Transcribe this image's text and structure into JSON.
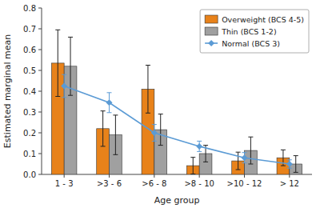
{
  "chart_data": {
    "type": "bar",
    "xlabel": "Age group",
    "ylabel": "Estimated marginal mean",
    "categories": [
      "1 - 3",
      ">3 - 6",
      ">6 - 8",
      ">8 - 10",
      ">10 - 12",
      "> 12"
    ],
    "series": [
      {
        "name": "Overweight (BCS 4-5)",
        "type": "bar",
        "color": "#E8821A",
        "values": [
          0.535,
          0.22,
          0.41,
          0.042,
          0.065,
          0.08
        ],
        "errors": [
          0.16,
          0.085,
          0.115,
          0.04,
          0.042,
          0.038
        ]
      },
      {
        "name": "Thin (BCS 1-2)",
        "type": "bar",
        "color": "#A0A0A0",
        "values": [
          0.52,
          0.19,
          0.215,
          0.1,
          0.115,
          0.05
        ],
        "errors": [
          0.14,
          0.095,
          0.075,
          0.04,
          0.065,
          0.04
        ]
      },
      {
        "name": "Normal (BCS 3)",
        "type": "line",
        "color": "#5B9BD5",
        "marker": "diamond",
        "line_style": "solid",
        "values": [
          0.425,
          0.345,
          0.2,
          0.135,
          0.08,
          0.05
        ],
        "errors": [
          0.055,
          0.048,
          0.04,
          0.025,
          0.025,
          0.02
        ]
      }
    ],
    "ylim": [
      0,
      0.8
    ],
    "yticks": [
      {
        "value": 0.0,
        "label": "0.0"
      },
      0.1,
      0.2,
      0.3,
      0.4,
      0.5,
      0.6,
      0.7,
      0.8
    ],
    "grid": false,
    "legend": "upper right"
  }
}
